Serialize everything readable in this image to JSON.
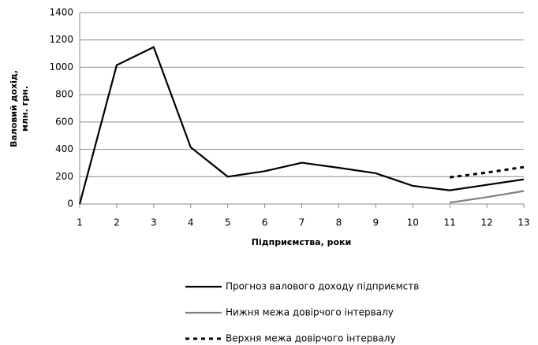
{
  "chart_data": {
    "type": "line",
    "ylabel": [
      "Валовий дохід,",
      "млн. грн."
    ],
    "xlabel": "Підприємства, роки",
    "x": [
      1,
      2,
      3,
      4,
      5,
      6,
      7,
      8,
      9,
      10,
      11,
      12,
      13
    ],
    "xlim": [
      1,
      13
    ],
    "xticks": [
      1,
      2,
      3,
      4,
      5,
      6,
      7,
      8,
      9,
      10,
      11,
      12,
      13
    ],
    "ylim": [
      0,
      1400
    ],
    "yticks": [
      0,
      200,
      400,
      600,
      800,
      1000,
      1200,
      1400
    ],
    "grid": true,
    "legend": "bottom",
    "series": [
      {
        "name": "Прогноз валового доходу підприємств",
        "color": "#000000",
        "style": "solid",
        "values": [
          0,
          1015,
          1148,
          415,
          200,
          240,
          302,
          265,
          225,
          133,
          100,
          140,
          180
        ]
      },
      {
        "name": "Нижня межа довірчого інтервалу",
        "color": "#808080",
        "style": "solid",
        "values": [
          null,
          null,
          null,
          null,
          null,
          null,
          null,
          null,
          null,
          null,
          10,
          50,
          95
        ]
      },
      {
        "name": "Верхня межа довірчого інтервалу",
        "color": "#000000",
        "style": "dotted",
        "values": [
          null,
          null,
          null,
          null,
          null,
          null,
          null,
          null,
          null,
          null,
          195,
          230,
          270
        ]
      }
    ]
  }
}
